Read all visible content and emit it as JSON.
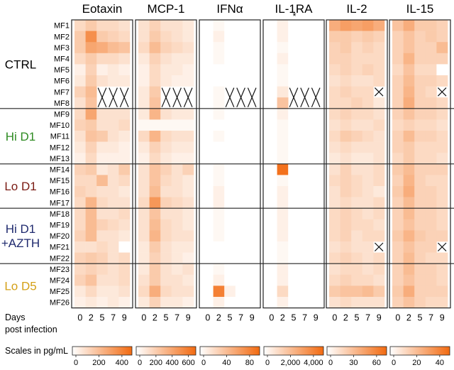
{
  "chart_data": {
    "type": "heatmap",
    "title": "",
    "xlabel": "Days post infection",
    "xlabel_lines": [
      "Days",
      "post infection"
    ],
    "days": [
      "0",
      "2",
      "5",
      "7",
      "9"
    ],
    "scale_caption": "Scales in pg/mL",
    "color_low": "#ffffff",
    "color_high": "#f26a10",
    "groups": [
      {
        "label_lines": [
          "CTRL"
        ],
        "color": "#000000",
        "rows": [
          "MF1",
          "MF2",
          "MF3",
          "MF4",
          "MF5",
          "MF6",
          "MF7",
          "MF8"
        ]
      },
      {
        "label_lines": [
          "Hi D1"
        ],
        "color": "#2e8b22",
        "rows": [
          "MF9",
          "MF10",
          "MF11",
          "MF12",
          "MF13"
        ]
      },
      {
        "label_lines": [
          "Lo D1"
        ],
        "color": "#7a1a12",
        "rows": [
          "MF14",
          "MF15",
          "MF16",
          "MF17"
        ]
      },
      {
        "label_lines": [
          "Hi D1",
          "+AZTH"
        ],
        "color": "#1f2a6e",
        "rows": [
          "MF18",
          "MF19",
          "MF20",
          "MF21",
          "MF22"
        ]
      },
      {
        "label_lines": [
          "Lo D5"
        ],
        "color": "#d4a017",
        "rows": [
          "MF23",
          "MF24",
          "MF25",
          "MF26"
        ]
      }
    ],
    "panels": [
      {
        "name": "Eotaxin",
        "scale_ticks": [
          "0",
          "200",
          "400"
        ],
        "values": [
          [
            0.25,
            0.35,
            0.25,
            0.25,
            0.2
          ],
          [
            0.35,
            0.75,
            0.35,
            0.3,
            0.25
          ],
          [
            0.35,
            0.6,
            0.55,
            0.45,
            0.4
          ],
          [
            0.25,
            0.35,
            0.25,
            0.25,
            0.2
          ],
          [
            0.1,
            0.3,
            0.1,
            0.15,
            0.1
          ],
          [
            0.15,
            0.35,
            0.2,
            0.15,
            0.15
          ],
          [
            0.3,
            0.45,
            null,
            null,
            null
          ],
          [
            0.2,
            0.4,
            null,
            null,
            null
          ],
          [
            0.25,
            0.6,
            0.2,
            0.2,
            0.2
          ],
          [
            0.3,
            0.35,
            0.2,
            0.2,
            0.25
          ],
          [
            0.2,
            0.4,
            0.35,
            0.2,
            0.15
          ],
          [
            0.15,
            0.3,
            0.15,
            0.15,
            0.1
          ],
          [
            0.1,
            0.25,
            0.1,
            0.1,
            0.1
          ],
          [
            0.3,
            0.35,
            0.15,
            0.2,
            0.35
          ],
          [
            0.25,
            0.25,
            0.45,
            0.2,
            0.25
          ],
          [
            0.3,
            0.25,
            0.2,
            0.2,
            0.15
          ],
          [
            0.25,
            0.5,
            0.25,
            0.2,
            0.2
          ],
          [
            0.25,
            0.45,
            0.2,
            0.2,
            0.25
          ],
          [
            0.25,
            0.45,
            0.3,
            0.25,
            0.2
          ],
          [
            0.3,
            0.45,
            0.2,
            0.2,
            0.15
          ],
          [
            0.2,
            0.2,
            0.25,
            0.2,
            0.0
          ],
          [
            0.3,
            0.35,
            0.3,
            0.2,
            0.25
          ],
          [
            0.25,
            0.3,
            0.25,
            0.2,
            0.25
          ],
          [
            0.3,
            0.4,
            0.2,
            0.2,
            0.25
          ],
          [
            0.15,
            0.25,
            0.15,
            0.15,
            0.2
          ],
          [
            0.1,
            0.15,
            0.1,
            0.15,
            0.1
          ]
        ]
      },
      {
        "name": "MCP-1",
        "scale_ticks": [
          "0",
          "200",
          "400",
          "600"
        ],
        "values": [
          [
            0.2,
            0.3,
            0.2,
            0.2,
            0.15
          ],
          [
            0.2,
            0.35,
            0.25,
            0.2,
            0.15
          ],
          [
            0.25,
            0.45,
            0.3,
            0.25,
            0.2
          ],
          [
            0.15,
            0.3,
            0.2,
            0.15,
            0.15
          ],
          [
            0.1,
            0.25,
            0.15,
            0.15,
            0.1
          ],
          [
            0.1,
            0.25,
            0.15,
            0.1,
            0.1
          ],
          [
            0.15,
            0.35,
            null,
            null,
            null
          ],
          [
            0.15,
            0.4,
            null,
            null,
            null
          ],
          [
            0.15,
            0.5,
            0.2,
            0.15,
            0.15
          ],
          [
            0.05,
            0.05,
            0.05,
            0.05,
            0.05
          ],
          [
            0.25,
            0.5,
            0.25,
            0.2,
            0.2
          ],
          [
            0.15,
            0.3,
            0.2,
            0.15,
            0.15
          ],
          [
            0.1,
            0.25,
            0.15,
            0.1,
            0.1
          ],
          [
            0.2,
            0.4,
            0.3,
            0.2,
            0.3
          ],
          [
            0.2,
            0.4,
            0.25,
            0.2,
            0.15
          ],
          [
            0.2,
            0.45,
            0.2,
            0.2,
            0.15
          ],
          [
            0.25,
            0.7,
            0.3,
            0.25,
            0.2
          ],
          [
            0.2,
            0.4,
            0.2,
            0.2,
            0.15
          ],
          [
            0.2,
            0.45,
            0.25,
            0.2,
            0.15
          ],
          [
            0.2,
            0.5,
            0.25,
            0.2,
            0.2
          ],
          [
            0.15,
            0.35,
            0.2,
            0.15,
            0.15
          ],
          [
            0.15,
            0.3,
            0.2,
            0.15,
            0.1
          ],
          [
            0.15,
            0.35,
            0.2,
            0.15,
            0.2
          ],
          [
            0.2,
            0.35,
            0.2,
            0.2,
            0.15
          ],
          [
            0.25,
            0.55,
            0.25,
            0.2,
            0.2
          ],
          [
            0.15,
            0.3,
            0.15,
            0.15,
            0.1
          ]
        ]
      },
      {
        "name": "IFNα",
        "scale_ticks": [
          "0",
          "40",
          "80"
        ],
        "values": [
          [
            0.0,
            0.05,
            0.0,
            0.0,
            0.0
          ],
          [
            0.0,
            0.1,
            0.0,
            0.0,
            0.0
          ],
          [
            0.0,
            0.05,
            0.0,
            0.0,
            0.0
          ],
          [
            0.0,
            0.05,
            0.0,
            0.0,
            0.0
          ],
          [
            0.0,
            0.0,
            0.0,
            0.0,
            0.0
          ],
          [
            0.0,
            0.0,
            0.0,
            0.0,
            0.0
          ],
          [
            0.0,
            0.05,
            null,
            null,
            null
          ],
          [
            0.0,
            0.05,
            null,
            null,
            null
          ],
          [
            0.0,
            0.05,
            0.0,
            0.0,
            0.0
          ],
          [
            0.0,
            0.0,
            0.0,
            0.0,
            0.0
          ],
          [
            0.0,
            0.05,
            0.0,
            0.0,
            0.0
          ],
          [
            0.0,
            0.0,
            0.0,
            0.0,
            0.0
          ],
          [
            0.0,
            0.0,
            0.0,
            0.0,
            0.0
          ],
          [
            0.0,
            0.05,
            0.0,
            0.0,
            0.0
          ],
          [
            0.0,
            0.05,
            0.0,
            0.0,
            0.0
          ],
          [
            0.0,
            0.1,
            0.0,
            0.0,
            0.0
          ],
          [
            0.0,
            0.1,
            0.0,
            0.0,
            0.0
          ],
          [
            0.0,
            0.05,
            0.0,
            0.0,
            0.0
          ],
          [
            0.0,
            0.05,
            0.0,
            0.0,
            0.0
          ],
          [
            0.0,
            0.05,
            0.0,
            0.0,
            0.0
          ],
          [
            0.0,
            0.0,
            0.0,
            0.0,
            0.0
          ],
          [
            0.0,
            0.0,
            0.0,
            0.0,
            0.0
          ],
          [
            0.0,
            0.05,
            0.0,
            0.0,
            0.0
          ],
          [
            0.0,
            0.1,
            0.0,
            0.0,
            0.0
          ],
          [
            0.0,
            0.85,
            0.1,
            0.0,
            0.0
          ],
          [
            0.0,
            0.1,
            0.0,
            0.0,
            0.0
          ]
        ]
      },
      {
        "name": "IL-1RA",
        "annotation": "*",
        "scale_ticks": [
          "0",
          "2,000",
          "4,000"
        ],
        "values": [
          [
            0.0,
            0.1,
            0.0,
            0.0,
            0.0
          ],
          [
            0.0,
            0.1,
            0.0,
            0.0,
            0.0
          ],
          [
            0.0,
            0.05,
            0.0,
            0.0,
            0.0
          ],
          [
            0.0,
            0.1,
            0.0,
            0.0,
            0.0
          ],
          [
            0.0,
            0.05,
            0.0,
            0.0,
            0.0
          ],
          [
            0.0,
            0.05,
            0.0,
            0.0,
            0.0
          ],
          [
            0.0,
            0.15,
            null,
            null,
            null
          ],
          [
            0.0,
            0.4,
            null,
            null,
            null
          ],
          [
            0.0,
            0.1,
            0.0,
            0.0,
            0.0
          ],
          [
            0.0,
            0.05,
            0.0,
            0.0,
            0.0
          ],
          [
            0.0,
            0.05,
            0.0,
            0.0,
            0.0
          ],
          [
            0.0,
            0.05,
            0.0,
            0.0,
            0.0
          ],
          [
            0.0,
            0.05,
            0.0,
            0.0,
            0.0
          ],
          [
            0.0,
            0.95,
            0.0,
            0.0,
            0.0
          ],
          [
            0.0,
            0.05,
            0.0,
            0.0,
            0.0
          ],
          [
            0.0,
            0.1,
            0.0,
            0.0,
            0.0
          ],
          [
            0.0,
            0.1,
            0.0,
            0.0,
            0.0
          ],
          [
            0.0,
            0.1,
            0.0,
            0.0,
            0.0
          ],
          [
            0.0,
            0.1,
            0.0,
            0.0,
            0.0
          ],
          [
            0.0,
            0.1,
            0.0,
            0.0,
            0.0
          ],
          [
            0.0,
            0.05,
            0.0,
            0.0,
            0.0
          ],
          [
            0.0,
            0.05,
            0.0,
            0.0,
            0.0
          ],
          [
            0.0,
            0.1,
            0.0,
            0.0,
            0.0
          ],
          [
            0.0,
            0.1,
            0.0,
            0.0,
            0.0
          ],
          [
            0.0,
            0.25,
            0.0,
            0.0,
            0.0
          ],
          [
            0.0,
            0.1,
            0.0,
            0.0,
            0.0
          ]
        ]
      },
      {
        "name": "IL-2",
        "scale_ticks": [
          "0",
          "30",
          "60"
        ],
        "values": [
          [
            0.55,
            0.65,
            0.6,
            0.65,
            0.55
          ],
          [
            0.35,
            0.35,
            0.3,
            0.35,
            0.3
          ],
          [
            0.3,
            0.35,
            0.25,
            0.3,
            0.25
          ],
          [
            0.3,
            0.3,
            0.25,
            0.25,
            0.25
          ],
          [
            0.25,
            0.3,
            0.25,
            0.3,
            0.25
          ],
          [
            0.2,
            0.25,
            0.2,
            0.2,
            0.25
          ],
          [
            0.25,
            0.3,
            0.25,
            0.25,
            null
          ],
          [
            0.25,
            0.25,
            0.3,
            0.25,
            0.15
          ],
          [
            0.25,
            0.3,
            0.25,
            0.25,
            0.2
          ],
          [
            0.2,
            0.25,
            0.2,
            0.2,
            0.25
          ],
          [
            0.25,
            0.35,
            0.3,
            0.25,
            0.2
          ],
          [
            0.2,
            0.25,
            0.2,
            0.2,
            0.2
          ],
          [
            0.15,
            0.2,
            0.15,
            0.15,
            0.2
          ],
          [
            0.2,
            0.3,
            0.2,
            0.2,
            0.25
          ],
          [
            0.25,
            0.3,
            0.25,
            0.2,
            0.25
          ],
          [
            0.2,
            0.3,
            0.25,
            0.2,
            0.15
          ],
          [
            0.2,
            0.25,
            0.2,
            0.2,
            0.25
          ],
          [
            0.25,
            0.3,
            0.25,
            0.2,
            0.25
          ],
          [
            0.25,
            0.3,
            0.25,
            0.25,
            0.2
          ],
          [
            0.25,
            0.3,
            0.2,
            0.25,
            0.25
          ],
          [
            0.2,
            0.25,
            0.2,
            0.2,
            null
          ],
          [
            0.25,
            0.3,
            0.25,
            0.2,
            0.25
          ],
          [
            0.2,
            0.25,
            0.25,
            0.2,
            0.25
          ],
          [
            0.25,
            0.3,
            0.25,
            0.25,
            0.2
          ],
          [
            0.35,
            0.4,
            0.4,
            0.45,
            0.35
          ],
          [
            0.2,
            0.25,
            0.2,
            0.2,
            0.2
          ]
        ]
      },
      {
        "name": "IL-15",
        "scale_ticks": [
          "0",
          "20",
          "40"
        ],
        "values": [
          [
            0.4,
            0.55,
            0.35,
            0.35,
            0.3
          ],
          [
            0.3,
            0.4,
            0.3,
            0.35,
            0.3
          ],
          [
            0.3,
            0.4,
            0.3,
            0.3,
            0.45
          ],
          [
            0.3,
            0.5,
            0.3,
            0.3,
            0.3
          ],
          [
            0.25,
            0.4,
            0.25,
            0.25,
            0.0
          ],
          [
            0.3,
            0.45,
            0.3,
            0.3,
            0.25
          ],
          [
            0.3,
            0.5,
            0.3,
            0.25,
            null
          ],
          [
            0.3,
            0.55,
            0.3,
            0.3,
            0.25
          ],
          [
            0.3,
            0.4,
            0.3,
            0.3,
            0.25
          ],
          [
            0.25,
            0.3,
            0.25,
            0.25,
            0.2
          ],
          [
            0.3,
            0.45,
            0.3,
            0.3,
            0.25
          ],
          [
            0.3,
            0.35,
            0.25,
            0.25,
            0.25
          ],
          [
            0.25,
            0.35,
            0.25,
            0.25,
            0.2
          ],
          [
            0.35,
            0.45,
            0.3,
            0.3,
            0.3
          ],
          [
            0.3,
            0.5,
            0.3,
            0.25,
            0.25
          ],
          [
            0.35,
            0.55,
            0.3,
            0.3,
            0.25
          ],
          [
            0.3,
            0.45,
            0.3,
            0.3,
            0.25
          ],
          [
            0.3,
            0.45,
            0.3,
            0.3,
            0.25
          ],
          [
            0.3,
            0.4,
            0.3,
            0.3,
            0.25
          ],
          [
            0.35,
            0.5,
            0.35,
            0.3,
            0.3
          ],
          [
            0.3,
            0.4,
            0.3,
            0.3,
            null
          ],
          [
            0.3,
            0.45,
            0.3,
            0.25,
            0.25
          ],
          [
            0.3,
            0.45,
            0.3,
            0.3,
            0.25
          ],
          [
            0.3,
            0.4,
            0.3,
            0.3,
            0.25
          ],
          [
            0.35,
            0.55,
            0.3,
            0.3,
            0.3
          ],
          [
            0.3,
            0.4,
            0.3,
            0.25,
            0.25
          ]
        ]
      }
    ]
  }
}
